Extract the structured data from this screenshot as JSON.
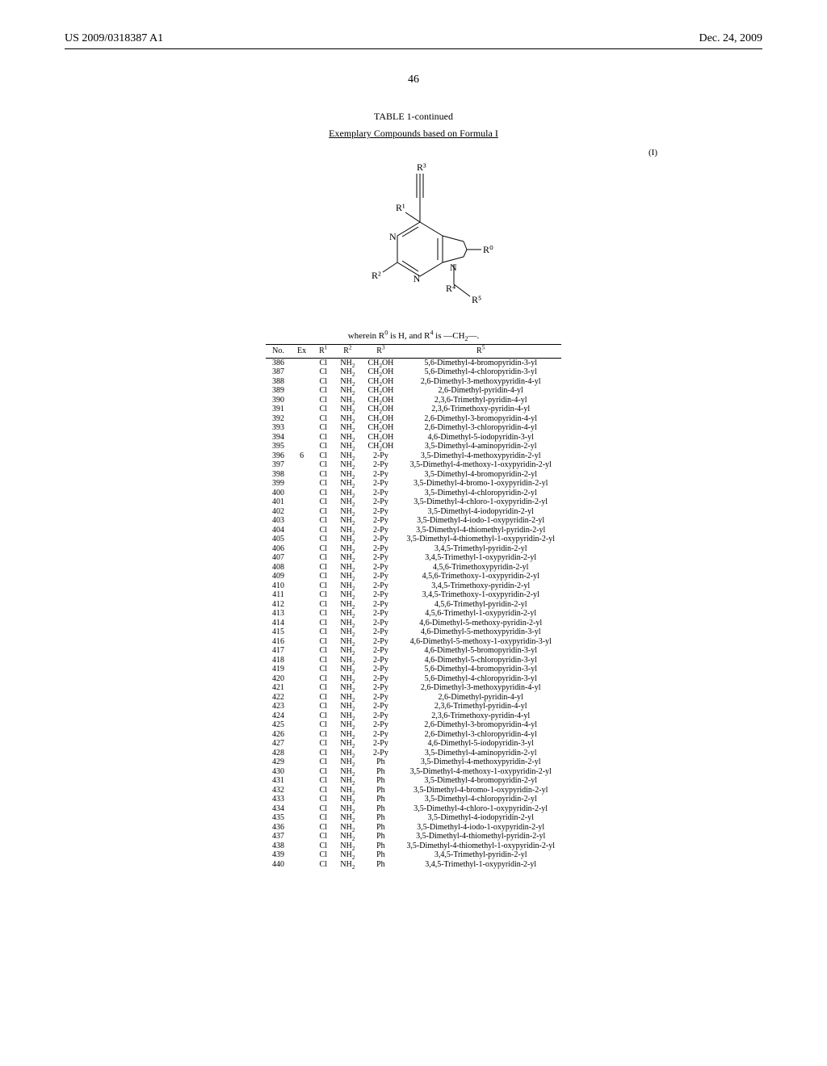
{
  "header": {
    "pub_number": "US 2009/0318387 A1",
    "pub_date": "Dec. 24, 2009"
  },
  "page_number": "46",
  "table": {
    "title": "TABLE 1-continued",
    "subtitle": "Exemplary Compounds based on Formula I",
    "formula_label": "(I)",
    "wherein_html": "wherein R<sup>0</sup> is H, and R<sup>4</sup> is —CH<sub>2</sub>—.",
    "columns": {
      "no": "No.",
      "ex": "Ex",
      "r1": "R<sup>1</sup>",
      "r2": "R<sup>2</sup>",
      "r3": "R<sup>3</sup>",
      "r5": "R<sup>5</sup>"
    },
    "rows": [
      {
        "no": "386",
        "ex": "",
        "r1": "Cl",
        "r2": "NH<sub>2</sub>",
        "r3": "CH<sub>2</sub>OH",
        "r5": "5,6-Dimethyl-4-bromopyridin-3-yl"
      },
      {
        "no": "387",
        "ex": "",
        "r1": "Cl",
        "r2": "NH<sub>2</sub>",
        "r3": "CH<sub>2</sub>OH",
        "r5": "5,6-Dimethyl-4-chloropyridin-3-yl"
      },
      {
        "no": "388",
        "ex": "",
        "r1": "Cl",
        "r2": "NH<sub>2</sub>",
        "r3": "CH<sub>2</sub>OH",
        "r5": "2,6-Dimethyl-3-methoxypyridin-4-yl"
      },
      {
        "no": "389",
        "ex": "",
        "r1": "Cl",
        "r2": "NH<sub>2</sub>",
        "r3": "CH<sub>2</sub>OH",
        "r5": "2,6-Dimethyl-pyridin-4-yl"
      },
      {
        "no": "390",
        "ex": "",
        "r1": "Cl",
        "r2": "NH<sub>2</sub>",
        "r3": "CH<sub>2</sub>OH",
        "r5": "2,3,6-Trimethyl-pyridin-4-yl"
      },
      {
        "no": "391",
        "ex": "",
        "r1": "Cl",
        "r2": "NH<sub>2</sub>",
        "r3": "CH<sub>2</sub>OH",
        "r5": "2,3,6-Trimethoxy-pyridin-4-yl"
      },
      {
        "no": "392",
        "ex": "",
        "r1": "Cl",
        "r2": "NH<sub>2</sub>",
        "r3": "CH<sub>2</sub>OH",
        "r5": "2,6-Dimethyl-3-bromopyridin-4-yl"
      },
      {
        "no": "393",
        "ex": "",
        "r1": "Cl",
        "r2": "NH<sub>2</sub>",
        "r3": "CH<sub>2</sub>OH",
        "r5": "2,6-Dimethyl-3-chloropyridin-4-yl"
      },
      {
        "no": "394",
        "ex": "",
        "r1": "Cl",
        "r2": "NH<sub>2</sub>",
        "r3": "CH<sub>2</sub>OH",
        "r5": "4,6-Dimethyl-5-iodopyridin-3-yl"
      },
      {
        "no": "395",
        "ex": "",
        "r1": "Cl",
        "r2": "NH<sub>2</sub>",
        "r3": "CH<sub>2</sub>OH",
        "r5": "3,5-Dimethyl-4-aminopyridin-2-yl"
      },
      {
        "no": "396",
        "ex": "6",
        "r1": "Cl",
        "r2": "NH<sub>2</sub>",
        "r3": "2-Py",
        "r5": "3,5-Dimethyl-4-methoxypyridin-2-yl"
      },
      {
        "no": "397",
        "ex": "",
        "r1": "Cl",
        "r2": "NH<sub>2</sub>",
        "r3": "2-Py",
        "r5": "3,5-Dimethyl-4-methoxy-1-oxypyridin-2-yl"
      },
      {
        "no": "398",
        "ex": "",
        "r1": "Cl",
        "r2": "NH<sub>2</sub>",
        "r3": "2-Py",
        "r5": "3,5-Dimethyl-4-bromopyridin-2-yl"
      },
      {
        "no": "399",
        "ex": "",
        "r1": "Cl",
        "r2": "NH<sub>2</sub>",
        "r3": "2-Py",
        "r5": "3,5-Dimethyl-4-bromo-1-oxypyridin-2-yl"
      },
      {
        "no": "400",
        "ex": "",
        "r1": "Cl",
        "r2": "NH<sub>2</sub>",
        "r3": "2-Py",
        "r5": "3,5-Dimethyl-4-chloropyridin-2-yl"
      },
      {
        "no": "401",
        "ex": "",
        "r1": "Cl",
        "r2": "NH<sub>2</sub>",
        "r3": "2-Py",
        "r5": "3,5-Dimethyl-4-chloro-1-oxypyridin-2-yl"
      },
      {
        "no": "402",
        "ex": "",
        "r1": "Cl",
        "r2": "NH<sub>2</sub>",
        "r3": "2-Py",
        "r5": "3,5-Dimethyl-4-iodopyridin-2-yl"
      },
      {
        "no": "403",
        "ex": "",
        "r1": "Cl",
        "r2": "NH<sub>2</sub>",
        "r3": "2-Py",
        "r5": "3,5-Dimethyl-4-iodo-1-oxypyridin-2-yl"
      },
      {
        "no": "404",
        "ex": "",
        "r1": "Cl",
        "r2": "NH<sub>2</sub>",
        "r3": "2-Py",
        "r5": "3,5-Dimethyl-4-thiomethyl-pyridin-2-yl"
      },
      {
        "no": "405",
        "ex": "",
        "r1": "Cl",
        "r2": "NH<sub>2</sub>",
        "r3": "2-Py",
        "r5": "3,5-Dimethyl-4-thiomethyl-1-oxypyridin-2-yl"
      },
      {
        "no": "406",
        "ex": "",
        "r1": "Cl",
        "r2": "NH<sub>2</sub>",
        "r3": "2-Py",
        "r5": "3,4,5-Trimethyl-pyridin-2-yl"
      },
      {
        "no": "407",
        "ex": "",
        "r1": "Cl",
        "r2": "NH<sub>2</sub>",
        "r3": "2-Py",
        "r5": "3,4,5-Trimethyl-1-oxypyridin-2-yl"
      },
      {
        "no": "408",
        "ex": "",
        "r1": "Cl",
        "r2": "NH<sub>2</sub>",
        "r3": "2-Py",
        "r5": "4,5,6-Trimethoxypyridin-2-yl"
      },
      {
        "no": "409",
        "ex": "",
        "r1": "Cl",
        "r2": "NH<sub>2</sub>",
        "r3": "2-Py",
        "r5": "4,5,6-Trimethoxy-1-oxypyridin-2-yl"
      },
      {
        "no": "410",
        "ex": "",
        "r1": "Cl",
        "r2": "NH<sub>2</sub>",
        "r3": "2-Py",
        "r5": "3,4,5-Trimethoxy-pyridin-2-yl"
      },
      {
        "no": "411",
        "ex": "",
        "r1": "Cl",
        "r2": "NH<sub>2</sub>",
        "r3": "2-Py",
        "r5": "3,4,5-Trimethoxy-1-oxypyridin-2-yl"
      },
      {
        "no": "412",
        "ex": "",
        "r1": "Cl",
        "r2": "NH<sub>2</sub>",
        "r3": "2-Py",
        "r5": "4,5,6-Trimethyl-pyridin-2-yl"
      },
      {
        "no": "413",
        "ex": "",
        "r1": "Cl",
        "r2": "NH<sub>2</sub>",
        "r3": "2-Py",
        "r5": "4,5,6-Trimethyl-1-oxypyridin-2-yl"
      },
      {
        "no": "414",
        "ex": "",
        "r1": "Cl",
        "r2": "NH<sub>2</sub>",
        "r3": "2-Py",
        "r5": "4,6-Dimethyl-5-methoxy-pyridin-2-yl"
      },
      {
        "no": "415",
        "ex": "",
        "r1": "Cl",
        "r2": "NH<sub>2</sub>",
        "r3": "2-Py",
        "r5": "4,6-Dimethyl-5-methoxypyridin-3-yl"
      },
      {
        "no": "416",
        "ex": "",
        "r1": "Cl",
        "r2": "NH<sub>2</sub>",
        "r3": "2-Py",
        "r5": "4,6-Dimethyl-5-methoxy-1-oxypyridin-3-yl"
      },
      {
        "no": "417",
        "ex": "",
        "r1": "Cl",
        "r2": "NH<sub>2</sub>",
        "r3": "2-Py",
        "r5": "4,6-Dimethyl-5-bromopyridin-3-yl"
      },
      {
        "no": "418",
        "ex": "",
        "r1": "Cl",
        "r2": "NH<sub>2</sub>",
        "r3": "2-Py",
        "r5": "4,6-Dimethyl-5-chloropyridin-3-yl"
      },
      {
        "no": "419",
        "ex": "",
        "r1": "Cl",
        "r2": "NH<sub>2</sub>",
        "r3": "2-Py",
        "r5": "5,6-Dimethyl-4-bromopyridin-3-yl"
      },
      {
        "no": "420",
        "ex": "",
        "r1": "Cl",
        "r2": "NH<sub>2</sub>",
        "r3": "2-Py",
        "r5": "5,6-Dimethyl-4-chloropyridin-3-yl"
      },
      {
        "no": "421",
        "ex": "",
        "r1": "Cl",
        "r2": "NH<sub>2</sub>",
        "r3": "2-Py",
        "r5": "2,6-Dimethyl-3-methoxypyridin-4-yl"
      },
      {
        "no": "422",
        "ex": "",
        "r1": "Cl",
        "r2": "NH<sub>2</sub>",
        "r3": "2-Py",
        "r5": "2,6-Dimethyl-pyridin-4-yl"
      },
      {
        "no": "423",
        "ex": "",
        "r1": "Cl",
        "r2": "NH<sub>2</sub>",
        "r3": "2-Py",
        "r5": "2,3,6-Trimethyl-pyridin-4-yl"
      },
      {
        "no": "424",
        "ex": "",
        "r1": "Cl",
        "r2": "NH<sub>2</sub>",
        "r3": "2-Py",
        "r5": "2,3,6-Trimethoxy-pyridin-4-yl"
      },
      {
        "no": "425",
        "ex": "",
        "r1": "Cl",
        "r2": "NH<sub>2</sub>",
        "r3": "2-Py",
        "r5": "2,6-Dimethyl-3-bromopyridin-4-yl"
      },
      {
        "no": "426",
        "ex": "",
        "r1": "Cl",
        "r2": "NH<sub>2</sub>",
        "r3": "2-Py",
        "r5": "2,6-Dimethyl-3-chloropyridin-4-yl"
      },
      {
        "no": "427",
        "ex": "",
        "r1": "Cl",
        "r2": "NH<sub>2</sub>",
        "r3": "2-Py",
        "r5": "4,6-Dimethyl-5-iodopyridin-3-yl"
      },
      {
        "no": "428",
        "ex": "",
        "r1": "Cl",
        "r2": "NH<sub>2</sub>",
        "r3": "2-Py",
        "r5": "3,5-Dimethyl-4-aminopyridin-2-yl"
      },
      {
        "no": "429",
        "ex": "",
        "r1": "Cl",
        "r2": "NH<sub>2</sub>",
        "r3": "Ph",
        "r5": "3,5-Dimethyl-4-methoxypyridin-2-yl"
      },
      {
        "no": "430",
        "ex": "",
        "r1": "Cl",
        "r2": "NH<sub>2</sub>",
        "r3": "Ph",
        "r5": "3,5-Dimethyl-4-methoxy-1-oxypyridin-2-yl"
      },
      {
        "no": "431",
        "ex": "",
        "r1": "Cl",
        "r2": "NH<sub>2</sub>",
        "r3": "Ph",
        "r5": "3,5-Dimethyl-4-bromopyridin-2-yl"
      },
      {
        "no": "432",
        "ex": "",
        "r1": "Cl",
        "r2": "NH<sub>2</sub>",
        "r3": "Ph",
        "r5": "3,5-Dimethyl-4-bromo-1-oxypyridin-2-yl"
      },
      {
        "no": "433",
        "ex": "",
        "r1": "Cl",
        "r2": "NH<sub>2</sub>",
        "r3": "Ph",
        "r5": "3,5-Dimethyl-4-chloropyridin-2-yl"
      },
      {
        "no": "434",
        "ex": "",
        "r1": "Cl",
        "r2": "NH<sub>2</sub>",
        "r3": "Ph",
        "r5": "3,5-Dimethyl-4-chloro-1-oxypyridin-2-yl"
      },
      {
        "no": "435",
        "ex": "",
        "r1": "Cl",
        "r2": "NH<sub>2</sub>",
        "r3": "Ph",
        "r5": "3,5-Dimethyl-4-iodopyridin-2-yl"
      },
      {
        "no": "436",
        "ex": "",
        "r1": "Cl",
        "r2": "NH<sub>2</sub>",
        "r3": "Ph",
        "r5": "3,5-Dimethyl-4-iodo-1-oxypyridin-2-yl"
      },
      {
        "no": "437",
        "ex": "",
        "r1": "Cl",
        "r2": "NH<sub>2</sub>",
        "r3": "Ph",
        "r5": "3,5-Dimethyl-4-thiomethyl-pyridin-2-yl"
      },
      {
        "no": "438",
        "ex": "",
        "r1": "Cl",
        "r2": "NH<sub>2</sub>",
        "r3": "Ph",
        "r5": "3,5-Dimethyl-4-thiomethyl-1-oxypyridin-2-yl"
      },
      {
        "no": "439",
        "ex": "",
        "r1": "Cl",
        "r2": "NH<sub>2</sub>",
        "r3": "Ph",
        "r5": "3,4,5-Trimethyl-pyridin-2-yl"
      },
      {
        "no": "440",
        "ex": "",
        "r1": "Cl",
        "r2": "NH<sub>2</sub>",
        "r3": "Ph",
        "r5": "3,4,5-Trimethyl-1-oxypyridin-2-yl"
      }
    ]
  },
  "structure": {
    "type": "chemical-structure",
    "stroke": "#000000",
    "stroke_width": 1,
    "font_size": 11,
    "labels": {
      "R3": "R³",
      "R1": "R¹",
      "R0": "R⁰",
      "R2": "R²",
      "R4": "R⁴",
      "R5": "R⁵",
      "N": "N"
    }
  }
}
